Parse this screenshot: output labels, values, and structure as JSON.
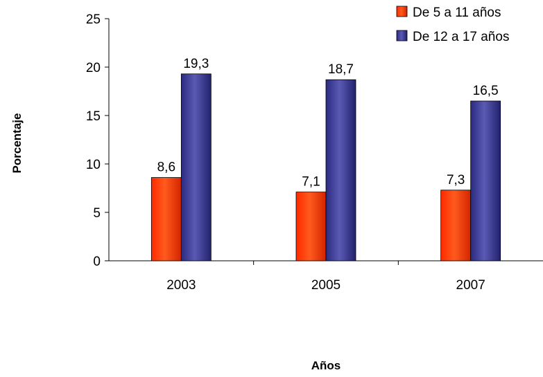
{
  "chart_data": {
    "type": "bar",
    "categories": [
      "2003",
      "2005",
      "2007"
    ],
    "series": [
      {
        "name": "De 5 a 11 años",
        "values": [
          8.6,
          7.1,
          7.3
        ],
        "labels": [
          "8,6",
          "7,1",
          "7,3"
        ],
        "color": "#ff3300"
      },
      {
        "name": "De 12 a 17 años",
        "values": [
          19.3,
          18.7,
          16.5
        ],
        "labels": [
          "19,3",
          "18,7",
          "16,5"
        ],
        "color": "#33338f"
      }
    ],
    "title": "",
    "xlabel": "Años",
    "ylabel": "Porcentaje",
    "ylim": [
      0,
      25
    ],
    "yticks": [
      0,
      5,
      10,
      15,
      20,
      25
    ],
    "grid": false,
    "legend_position": "top-right"
  }
}
